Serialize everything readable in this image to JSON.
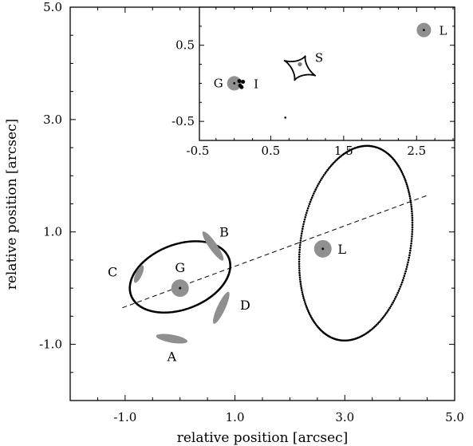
{
  "chart_data": [
    {
      "type": "scatter",
      "title": "",
      "xlabel": "relative position [arcsec]",
      "ylabel": "relative position [arcsec]",
      "xlim": [
        -2.0,
        5.0
      ],
      "ylim": [
        -2.0,
        5.0
      ],
      "xticks": [
        -1.0,
        1.0,
        3.0,
        5.0
      ],
      "yticks": [
        -1.0,
        1.0,
        3.0,
        5.0
      ],
      "xtick_labels": [
        "-1.0",
        "1.0",
        "3.0",
        "5.0"
      ],
      "ytick_labels": [
        "-1.0",
        "1.0",
        "3.0",
        "5.0"
      ],
      "grid": false,
      "colors": {
        "points": "#000000",
        "galaxies": "#909090",
        "images": "#8f8f8f"
      },
      "galaxies": [
        {
          "label": "G",
          "x": 0.0,
          "y": 0.0
        },
        {
          "label": "L",
          "x": 2.6,
          "y": 0.7
        }
      ],
      "critical_curves": [
        {
          "cx": 0.0,
          "cy": 0.2,
          "rx": 0.95,
          "ry": 0.58,
          "angle_deg": 20
        },
        {
          "cx": 3.2,
          "cy": 0.8,
          "rx": 1.75,
          "ry": 1.0,
          "angle_deg": 80
        }
      ],
      "dashed_line": {
        "x": [
          -1.05,
          4.5
        ],
        "y": [
          -0.35,
          1.65
        ]
      },
      "lensed_images": [
        {
          "label": "A",
          "x": -0.15,
          "y": -0.9
        },
        {
          "label": "B",
          "x": 0.6,
          "y": 0.75
        },
        {
          "label": "C",
          "x": -0.75,
          "y": 0.25
        },
        {
          "label": "D",
          "x": 0.75,
          "y": -0.35
        }
      ]
    },
    {
      "type": "scatter",
      "title": "",
      "xlabel": "",
      "ylabel": "",
      "xlim": [
        -0.5,
        3.0
      ],
      "ylim": [
        -0.75,
        1.0
      ],
      "xticks": [
        -0.5,
        0.5,
        1.5,
        2.5
      ],
      "yticks": [
        -0.5,
        0.5
      ],
      "xtick_labels": [
        "-0.5",
        "0.5",
        "1.5",
        "2.5"
      ],
      "ytick_labels": [
        "-0.5",
        "0.5"
      ],
      "grid": false,
      "galaxies": [
        {
          "label": "G",
          "x": 0.0,
          "y": 0.0
        },
        {
          "label": "L",
          "x": 2.6,
          "y": 0.7
        }
      ],
      "caustic": {
        "cx": 0.9,
        "cy": 0.2,
        "size": 0.24
      },
      "source": {
        "label": "S",
        "x": 0.9,
        "y": 0.25
      },
      "image_positions": [
        {
          "x": 0.07,
          "y": 0.03
        },
        {
          "x": 0.12,
          "y": 0.02
        },
        {
          "x": 0.1,
          "y": -0.05
        },
        {
          "x": 0.08,
          "y": -0.03
        }
      ],
      "image_label": {
        "label": "I",
        "x": 0.3,
        "y": 0.0
      },
      "stray_point": {
        "x": 0.7,
        "y": -0.45
      }
    }
  ]
}
